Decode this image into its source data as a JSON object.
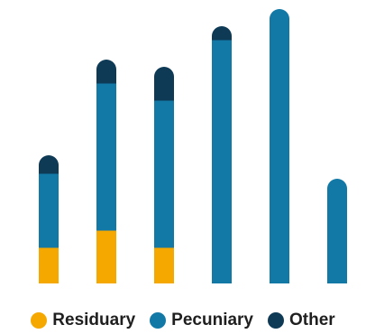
{
  "chart_data": {
    "type": "bar",
    "stacked": true,
    "categories": [
      "",
      "",
      "",
      "",
      "",
      ""
    ],
    "series": [
      {
        "name": "Residuary",
        "color": "#F5A800",
        "values": [
          40,
          59,
          40,
          0,
          0,
          0
        ]
      },
      {
        "name": "Pecuniary",
        "color": "#1278A6",
        "values": [
          82,
          163,
          163,
          270,
          304,
          116
        ]
      },
      {
        "name": "Other",
        "color": "#0E3A56",
        "values": [
          20,
          26,
          37,
          15,
          0,
          0
        ]
      }
    ],
    "ylim": [
      0,
      304
    ],
    "grid": false,
    "legend": "bottom"
  }
}
